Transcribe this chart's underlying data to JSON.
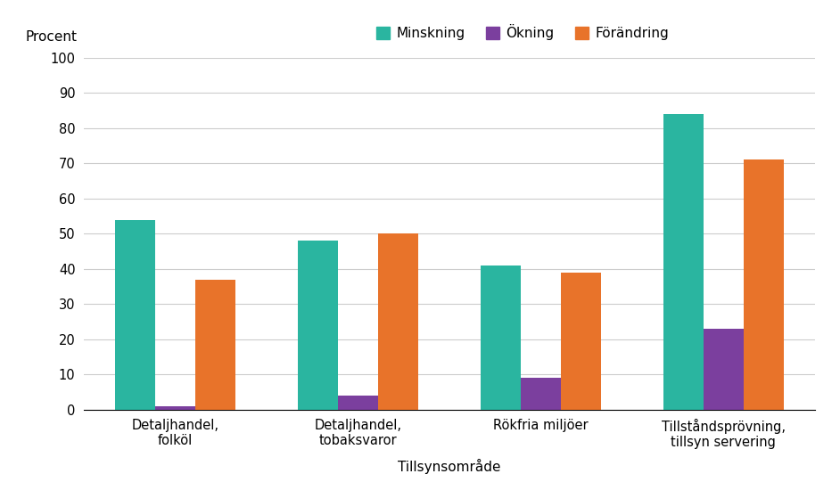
{
  "categories": [
    "Detaljhandel,\nfolköl",
    "Detaljhandel,\ntobaksvaror",
    "Rökfria miljöer",
    "Tillståndsprövning,\ntillsyn servering"
  ],
  "series": {
    "Minskning": [
      54,
      48,
      41,
      84
    ],
    "Ökning": [
      1,
      4,
      9,
      23
    ],
    "Förändring": [
      37,
      50,
      39,
      71
    ]
  },
  "colors": {
    "Minskning": "#2ab5a0",
    "Ökning": "#7b3f9e",
    "Förändring": "#e8732a"
  },
  "procent_label": "Procent",
  "xlabel": "Tillsynsområde",
  "ylim": [
    0,
    100
  ],
  "yticks": [
    0,
    10,
    20,
    30,
    40,
    50,
    60,
    70,
    80,
    90,
    100
  ],
  "bar_width": 0.22,
  "legend_order": [
    "Minskning",
    "Ökning",
    "Förändring"
  ],
  "background_color": "#ffffff",
  "grid_color": "#cccccc"
}
